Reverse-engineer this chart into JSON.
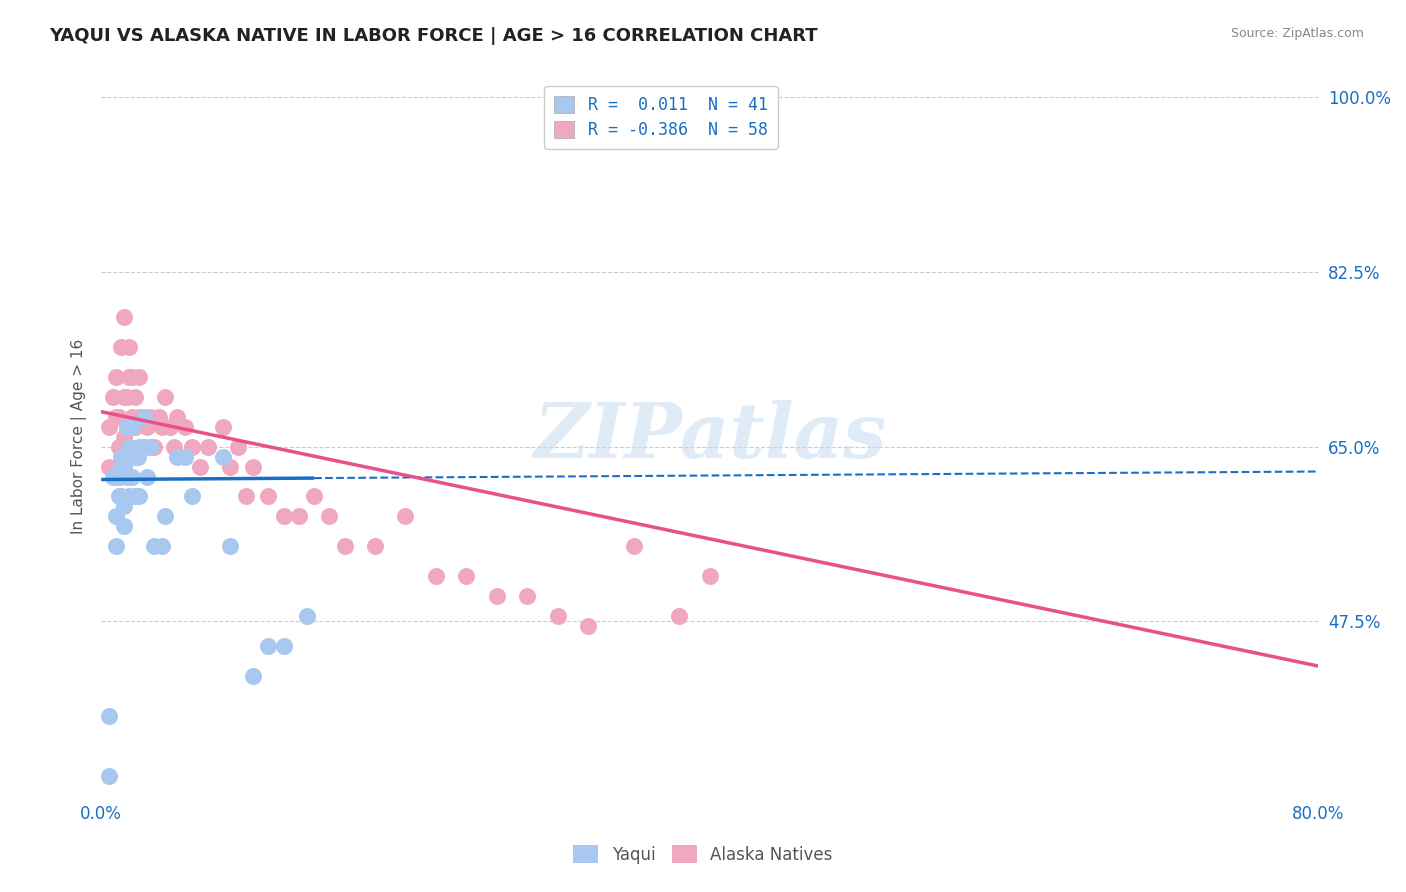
{
  "title": "YAQUI VS ALASKA NATIVE IN LABOR FORCE | AGE > 16 CORRELATION CHART",
  "source_text": "Source: ZipAtlas.com",
  "ylabel": "In Labor Force | Age > 16",
  "xlim": [
    0.0,
    0.8
  ],
  "ylim": [
    0.3,
    1.02
  ],
  "ytick_labels": [
    "47.5%",
    "65.0%",
    "82.5%",
    "100.0%"
  ],
  "ytick_values": [
    0.475,
    0.65,
    0.825,
    1.0
  ],
  "xtick_labels": [
    "0.0%",
    "80.0%"
  ],
  "xtick_values": [
    0.0,
    0.8
  ],
  "grid_color": "#cccccc",
  "bg_color": "#ffffff",
  "watermark": "ZIPatlas",
  "legend_R1": "R =  0.011  N = 41",
  "legend_R2": "R = -0.386  N = 58",
  "yaqui_color": "#a8c8f0",
  "alaska_color": "#f0a8c0",
  "yaqui_line_color": "#1a6fc4",
  "alaska_line_color": "#e8508a",
  "title_color": "#222222",
  "axis_label_color": "#1a6fc4",
  "yaqui_scatter_x": [
    0.005,
    0.005,
    0.008,
    0.01,
    0.01,
    0.01,
    0.012,
    0.012,
    0.013,
    0.013,
    0.013,
    0.015,
    0.015,
    0.015,
    0.017,
    0.017,
    0.017,
    0.018,
    0.018,
    0.02,
    0.02,
    0.022,
    0.022,
    0.024,
    0.025,
    0.025,
    0.028,
    0.03,
    0.032,
    0.035,
    0.04,
    0.042,
    0.05,
    0.055,
    0.06,
    0.08,
    0.085,
    0.1,
    0.11,
    0.12,
    0.135
  ],
  "yaqui_scatter_y": [
    0.32,
    0.38,
    0.62,
    0.55,
    0.58,
    0.62,
    0.6,
    0.62,
    0.6,
    0.63,
    0.64,
    0.57,
    0.59,
    0.63,
    0.62,
    0.64,
    0.67,
    0.6,
    0.65,
    0.62,
    0.67,
    0.6,
    0.64,
    0.64,
    0.6,
    0.65,
    0.68,
    0.62,
    0.65,
    0.55,
    0.55,
    0.58,
    0.64,
    0.64,
    0.6,
    0.64,
    0.55,
    0.42,
    0.45,
    0.45,
    0.48
  ],
  "alaska_scatter_x": [
    0.005,
    0.005,
    0.008,
    0.01,
    0.01,
    0.012,
    0.012,
    0.013,
    0.015,
    0.015,
    0.015,
    0.017,
    0.017,
    0.018,
    0.018,
    0.02,
    0.02,
    0.022,
    0.022,
    0.025,
    0.025,
    0.028,
    0.028,
    0.03,
    0.032,
    0.035,
    0.038,
    0.04,
    0.042,
    0.045,
    0.048,
    0.05,
    0.055,
    0.06,
    0.065,
    0.07,
    0.08,
    0.085,
    0.09,
    0.095,
    0.1,
    0.11,
    0.12,
    0.13,
    0.14,
    0.15,
    0.16,
    0.18,
    0.2,
    0.22,
    0.24,
    0.26,
    0.28,
    0.3,
    0.32,
    0.35,
    0.38,
    0.4
  ],
  "alaska_scatter_y": [
    0.63,
    0.67,
    0.7,
    0.68,
    0.72,
    0.65,
    0.68,
    0.75,
    0.66,
    0.7,
    0.78,
    0.67,
    0.7,
    0.72,
    0.75,
    0.68,
    0.72,
    0.67,
    0.7,
    0.68,
    0.72,
    0.65,
    0.68,
    0.67,
    0.68,
    0.65,
    0.68,
    0.67,
    0.7,
    0.67,
    0.65,
    0.68,
    0.67,
    0.65,
    0.63,
    0.65,
    0.67,
    0.63,
    0.65,
    0.6,
    0.63,
    0.6,
    0.58,
    0.58,
    0.6,
    0.58,
    0.55,
    0.55,
    0.58,
    0.52,
    0.52,
    0.5,
    0.5,
    0.48,
    0.47,
    0.55,
    0.48,
    0.52
  ]
}
